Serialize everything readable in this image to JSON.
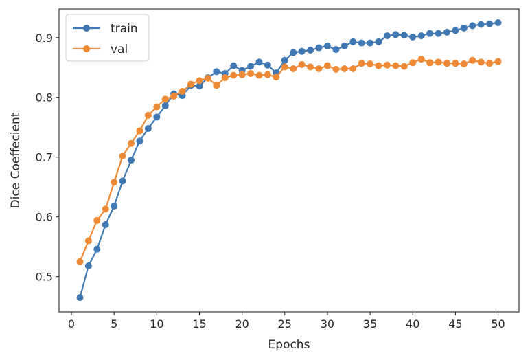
{
  "chart_data": {
    "type": "line",
    "title": "",
    "xlabel": "Epochs",
    "ylabel": "Dice Coeffecient",
    "xlim": [
      -1.45,
      52.45
    ],
    "ylim": [
      0.441,
      0.948
    ],
    "xticks": [
      0,
      5,
      10,
      15,
      20,
      25,
      30,
      35,
      40,
      45,
      50
    ],
    "xtick_labels": [
      "0",
      "5",
      "10",
      "15",
      "20",
      "25",
      "30",
      "35",
      "40",
      "45",
      "50"
    ],
    "yticks": [
      0.5,
      0.6,
      0.7,
      0.8,
      0.9
    ],
    "ytick_labels": [
      "0.5",
      "0.6",
      "0.7",
      "0.8",
      "0.9"
    ],
    "grid": false,
    "legend_position": "top-left",
    "x": [
      1,
      2,
      3,
      4,
      5,
      6,
      7,
      8,
      9,
      10,
      11,
      12,
      13,
      14,
      15,
      16,
      17,
      18,
      19,
      20,
      21,
      22,
      23,
      24,
      25,
      26,
      27,
      28,
      29,
      30,
      31,
      32,
      33,
      34,
      35,
      36,
      37,
      38,
      39,
      40,
      41,
      42,
      43,
      44,
      45,
      46,
      47,
      48,
      49,
      50
    ],
    "series": [
      {
        "name": "train",
        "color": "#3f78b3",
        "values": [
          0.465,
          0.518,
          0.546,
          0.587,
          0.618,
          0.66,
          0.695,
          0.727,
          0.748,
          0.767,
          0.786,
          0.806,
          0.803,
          0.82,
          0.819,
          0.833,
          0.843,
          0.84,
          0.853,
          0.845,
          0.852,
          0.859,
          0.854,
          0.841,
          0.862,
          0.875,
          0.877,
          0.879,
          0.883,
          0.886,
          0.88,
          0.886,
          0.893,
          0.891,
          0.891,
          0.893,
          0.903,
          0.905,
          0.904,
          0.901,
          0.903,
          0.907,
          0.907,
          0.909,
          0.912,
          0.916,
          0.92,
          0.922,
          0.923,
          0.925
        ]
      },
      {
        "name": "val",
        "color": "#ee8a35",
        "values": [
          0.525,
          0.56,
          0.594,
          0.613,
          0.658,
          0.702,
          0.723,
          0.744,
          0.77,
          0.784,
          0.797,
          0.802,
          0.81,
          0.822,
          0.828,
          0.832,
          0.82,
          0.833,
          0.837,
          0.838,
          0.84,
          0.837,
          0.838,
          0.834,
          0.851,
          0.848,
          0.855,
          0.851,
          0.848,
          0.853,
          0.847,
          0.848,
          0.848,
          0.857,
          0.856,
          0.853,
          0.854,
          0.853,
          0.852,
          0.858,
          0.864,
          0.858,
          0.859,
          0.857,
          0.857,
          0.856,
          0.862,
          0.859,
          0.857,
          0.86
        ]
      }
    ]
  }
}
